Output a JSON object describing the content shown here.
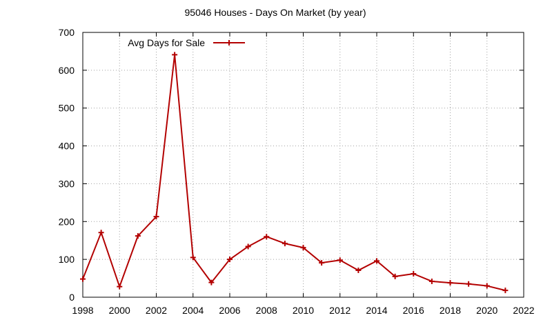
{
  "chart_data": {
    "type": "line",
    "title": "95046 Houses - Days On Market (by year)",
    "xlabel": "",
    "ylabel": "",
    "xlim": [
      1998,
      2022
    ],
    "ylim": [
      0,
      700
    ],
    "xticks": [
      1998,
      2000,
      2002,
      2004,
      2006,
      2008,
      2010,
      2012,
      2014,
      2016,
      2018,
      2020,
      2022
    ],
    "yticks": [
      0,
      100,
      200,
      300,
      400,
      500,
      600,
      700
    ],
    "grid": true,
    "legend": "top-left",
    "series": [
      {
        "name": "Avg Days for Sale",
        "color": "#b30000",
        "marker": "plus",
        "x": [
          1998,
          1999,
          2000,
          2001,
          2002,
          2003,
          2004,
          2005,
          2006,
          2007,
          2008,
          2009,
          2010,
          2011,
          2012,
          2013,
          2014,
          2015,
          2016,
          2017,
          2018,
          2019,
          2020,
          2021
        ],
        "y": [
          48,
          171,
          28,
          162,
          213,
          641,
          105,
          39,
          100,
          134,
          160,
          142,
          131,
          91,
          98,
          71,
          96,
          55,
          62,
          42,
          38,
          35,
          30,
          18
        ]
      }
    ]
  }
}
